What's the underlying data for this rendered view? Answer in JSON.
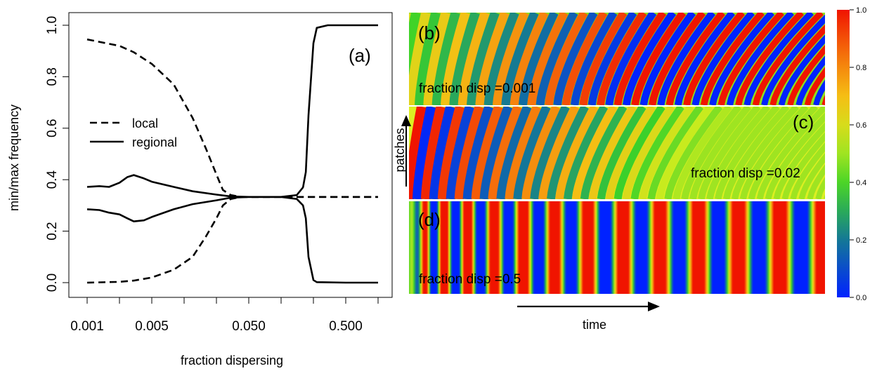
{
  "colors": {
    "line": "#000000",
    "heatmap_low": "#0022ff",
    "heatmap_mid": "#e6f01e",
    "heatmap_high": "#f01e00"
  },
  "left_panel": {
    "label": "(a)",
    "xlabel": "fraction dispersing",
    "ylabel": "min/max frequency"
  },
  "heatmaps": {
    "b": {
      "label": "(b)",
      "caption": "fraction disp =0.001"
    },
    "c": {
      "label": "(c)",
      "caption": "fraction disp =0.02"
    },
    "d": {
      "label": "(d)",
      "caption": "fraction disp =0.5"
    },
    "ylabel": "patches",
    "xlabel": "time"
  },
  "colorbar": {
    "ticks": [
      "0.0",
      "0.2",
      "0.4",
      "0.6",
      "0.8",
      "1.0"
    ]
  },
  "chart_data": [
    {
      "type": "line",
      "panel": "(a)",
      "xlabel": "fraction dispersing",
      "ylabel": "min/max frequency",
      "x_scale": "log",
      "xlim": [
        0.001,
        1.0
      ],
      "ylim": [
        0.0,
        1.0
      ],
      "xticks": [
        0.001,
        0.005,
        0.05,
        0.5
      ],
      "xtick_labels": [
        "0.001",
        "0.005",
        "0.050",
        "0.500"
      ],
      "yticks": [
        "0.0",
        "0.2",
        "0.4",
        "0.6",
        "0.8",
        "1.0"
      ],
      "legend": {
        "position": "center-left",
        "entries": [
          "local",
          "regional"
        ]
      },
      "series": [
        {
          "name": "local",
          "style": "dashed",
          "upper": {
            "x": [
              0.001,
              0.002,
              0.003,
              0.005,
              0.008,
              0.012,
              0.016,
              0.02,
              0.024,
              0.03,
              0.04,
              1.0
            ],
            "y": [
              0.945,
              0.92,
              0.895,
              0.85,
              0.77,
              0.64,
              0.52,
              0.42,
              0.36,
              0.34,
              0.333,
              0.333
            ]
          },
          "lower": {
            "x": [
              0.001,
              0.002,
              0.003,
              0.005,
              0.008,
              0.012,
              0.016,
              0.02,
              0.024,
              0.03,
              0.04,
              1.0
            ],
            "y": [
              0.0,
              0.003,
              0.008,
              0.02,
              0.05,
              0.1,
              0.18,
              0.25,
              0.3,
              0.325,
              0.333,
              0.333
            ]
          }
        },
        {
          "name": "regional",
          "style": "solid",
          "upper": {
            "x": [
              0.001,
              0.0013,
              0.0016,
              0.002,
              0.0025,
              0.003,
              0.004,
              0.005,
              0.008,
              0.012,
              0.02,
              0.03,
              0.05,
              0.1,
              0.14,
              0.16,
              0.17,
              0.18,
              0.2,
              0.22,
              0.3,
              0.5,
              1.0
            ],
            "y": [
              0.372,
              0.375,
              0.372,
              0.388,
              0.41,
              0.418,
              0.405,
              0.392,
              0.372,
              0.355,
              0.342,
              0.335,
              0.333,
              0.333,
              0.34,
              0.37,
              0.43,
              0.65,
              0.93,
              0.99,
              1.0,
              1.0,
              1.0
            ]
          },
          "lower": {
            "x": [
              0.001,
              0.0013,
              0.0016,
              0.002,
              0.0025,
              0.003,
              0.004,
              0.005,
              0.008,
              0.012,
              0.02,
              0.03,
              0.05,
              0.1,
              0.14,
              0.16,
              0.17,
              0.18,
              0.2,
              0.22,
              0.3,
              0.5,
              1.0
            ],
            "y": [
              0.285,
              0.282,
              0.272,
              0.265,
              0.25,
              0.238,
              0.242,
              0.255,
              0.285,
              0.305,
              0.32,
              0.33,
              0.333,
              0.333,
              0.325,
              0.3,
              0.25,
              0.1,
              0.01,
              0.002,
              0.001,
              0.0,
              0.0
            ]
          }
        }
      ]
    }
  ]
}
